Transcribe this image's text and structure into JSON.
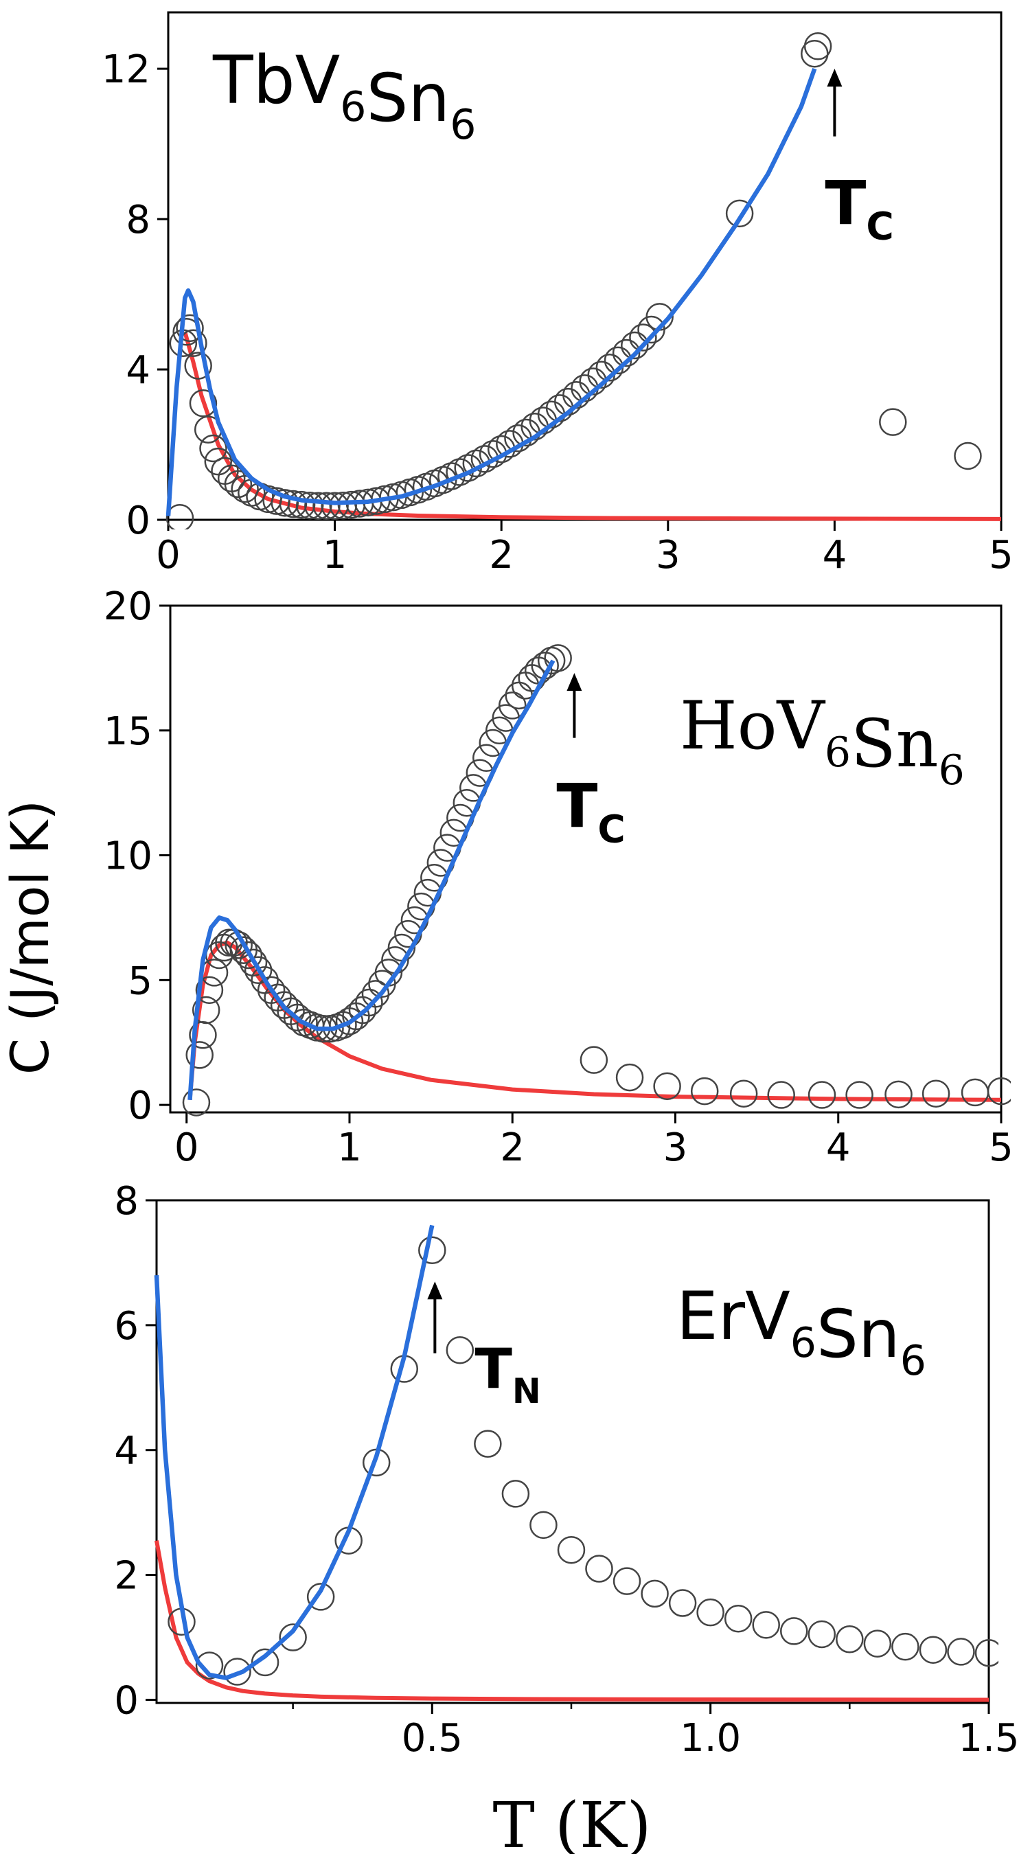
{
  "figure": {
    "ylabel": "C (J/mol K)",
    "xlabel": "T (K)"
  },
  "chart_data": [
    {
      "type": "scatter",
      "id": "tb",
      "title_base": "TbV",
      "title_sub1": "6",
      "title_mid": "Sn",
      "title_sub2": "6",
      "xlim": [
        0,
        5
      ],
      "ylim": [
        0,
        13.5
      ],
      "xticks": [
        0,
        1,
        2,
        3,
        4,
        5
      ],
      "xtick_labels": [
        "0",
        "1",
        "2",
        "3",
        "4",
        "5"
      ],
      "yticks": [
        0,
        4,
        8,
        12
      ],
      "ytick_labels": [
        "0",
        "4",
        "8",
        "12"
      ],
      "annotation": {
        "base": "T",
        "sub": "C",
        "x": 4.0,
        "y_tail": 10.2,
        "y_head": 12.0
      },
      "series": [
        {
          "name": "data",
          "kind": "markers",
          "x": [
            0.07,
            0.09,
            0.11,
            0.13,
            0.15,
            0.18,
            0.21,
            0.24,
            0.27,
            0.3,
            0.34,
            0.38,
            0.42,
            0.46,
            0.5,
            0.55,
            0.6,
            0.65,
            0.7,
            0.75,
            0.8,
            0.85,
            0.9,
            0.95,
            1.0,
            1.05,
            1.1,
            1.15,
            1.2,
            1.25,
            1.3,
            1.35,
            1.4,
            1.45,
            1.5,
            1.55,
            1.6,
            1.65,
            1.7,
            1.75,
            1.8,
            1.85,
            1.9,
            1.95,
            2.0,
            2.05,
            2.1,
            2.15,
            2.2,
            2.25,
            2.3,
            2.35,
            2.4,
            2.45,
            2.5,
            2.55,
            2.6,
            2.65,
            2.7,
            2.75,
            2.8,
            2.85,
            2.9,
            2.95,
            3.43,
            3.88,
            3.9,
            4.35,
            4.8
          ],
          "y": [
            0.05,
            4.7,
            5.0,
            5.1,
            4.7,
            4.1,
            3.1,
            2.4,
            1.9,
            1.55,
            1.3,
            1.1,
            0.95,
            0.82,
            0.72,
            0.62,
            0.55,
            0.5,
            0.45,
            0.42,
            0.4,
            0.38,
            0.37,
            0.37,
            0.37,
            0.38,
            0.4,
            0.43,
            0.46,
            0.5,
            0.55,
            0.6,
            0.66,
            0.73,
            0.8,
            0.88,
            0.97,
            1.06,
            1.16,
            1.27,
            1.38,
            1.5,
            1.62,
            1.75,
            1.88,
            2.02,
            2.17,
            2.32,
            2.48,
            2.64,
            2.8,
            2.97,
            3.14,
            3.32,
            3.5,
            3.68,
            3.86,
            4.05,
            4.24,
            4.44,
            4.64,
            4.85,
            5.06,
            5.4,
            8.15,
            12.4,
            12.6,
            2.6,
            1.7
          ]
        },
        {
          "name": "fit-total",
          "kind": "line",
          "color": "#2a6fdb",
          "x": [
            0.0,
            0.05,
            0.1,
            0.12,
            0.15,
            0.2,
            0.25,
            0.3,
            0.4,
            0.5,
            0.6,
            0.7,
            0.8,
            1.0,
            1.2,
            1.4,
            1.6,
            1.8,
            2.0,
            2.2,
            2.4,
            2.6,
            2.8,
            3.0,
            3.2,
            3.4,
            3.6,
            3.8,
            3.88
          ],
          "y": [
            0.1,
            3.5,
            5.9,
            6.1,
            5.8,
            4.6,
            3.5,
            2.6,
            1.6,
            1.1,
            0.8,
            0.62,
            0.52,
            0.45,
            0.48,
            0.62,
            0.9,
            1.25,
            1.7,
            2.2,
            2.85,
            3.6,
            4.4,
            5.35,
            6.5,
            7.8,
            9.2,
            11.0,
            12.0
          ]
        },
        {
          "name": "fit-schottky",
          "kind": "line",
          "color": "#ef3b3b",
          "x": [
            0.1,
            0.15,
            0.2,
            0.3,
            0.4,
            0.5,
            0.6,
            0.8,
            1.0,
            1.2,
            1.5,
            2.0,
            2.5,
            3.0,
            4.0,
            5.0
          ],
          "y": [
            5.0,
            4.2,
            3.3,
            2.0,
            1.2,
            0.8,
            0.55,
            0.32,
            0.22,
            0.16,
            0.11,
            0.07,
            0.05,
            0.04,
            0.03,
            0.02
          ]
        }
      ]
    },
    {
      "type": "scatter",
      "id": "ho",
      "title_base": "HoV",
      "title_sub1": "6",
      "title_mid": "Sn",
      "title_sub2": "6",
      "xlim": [
        -0.1,
        5
      ],
      "ylim": [
        -0.3,
        20
      ],
      "xticks": [
        0,
        1,
        2,
        3,
        4,
        5
      ],
      "xtick_labels": [
        "0",
        "1",
        "2",
        "3",
        "4",
        "5"
      ],
      "yticks": [
        0,
        5,
        10,
        15,
        20
      ],
      "ytick_labels": [
        "0",
        "5",
        "10",
        "15",
        "20"
      ],
      "annotation": {
        "base": "T",
        "sub": "C",
        "x": 2.38,
        "y_tail": 14.7,
        "y_head": 17.3
      },
      "series": [
        {
          "name": "data",
          "kind": "markers",
          "x": [
            0.06,
            0.08,
            0.1,
            0.12,
            0.14,
            0.17,
            0.2,
            0.23,
            0.26,
            0.29,
            0.32,
            0.35,
            0.38,
            0.41,
            0.44,
            0.48,
            0.52,
            0.56,
            0.6,
            0.64,
            0.68,
            0.72,
            0.76,
            0.8,
            0.84,
            0.88,
            0.92,
            0.96,
            1.0,
            1.04,
            1.08,
            1.12,
            1.16,
            1.2,
            1.24,
            1.28,
            1.32,
            1.36,
            1.4,
            1.44,
            1.48,
            1.52,
            1.56,
            1.6,
            1.64,
            1.68,
            1.72,
            1.76,
            1.8,
            1.84,
            1.88,
            1.92,
            1.96,
            2.0,
            2.04,
            2.08,
            2.12,
            2.16,
            2.2,
            2.24,
            2.28,
            2.5,
            2.72,
            2.95,
            3.18,
            3.42,
            3.65,
            3.9,
            4.13,
            4.37,
            4.6,
            4.84,
            5.0
          ],
          "y": [
            0.1,
            2.0,
            2.8,
            3.8,
            4.6,
            5.3,
            6.0,
            6.3,
            6.5,
            6.5,
            6.4,
            6.2,
            6.0,
            5.7,
            5.4,
            5.0,
            4.6,
            4.3,
            4.0,
            3.75,
            3.5,
            3.3,
            3.2,
            3.1,
            3.05,
            3.05,
            3.1,
            3.2,
            3.35,
            3.55,
            3.8,
            4.1,
            4.45,
            4.85,
            5.3,
            5.8,
            6.3,
            6.85,
            7.4,
            7.95,
            8.5,
            9.1,
            9.7,
            10.3,
            10.9,
            11.5,
            12.1,
            12.7,
            13.3,
            13.9,
            14.5,
            15.0,
            15.5,
            16.0,
            16.4,
            16.8,
            17.1,
            17.4,
            17.6,
            17.8,
            17.9,
            1.8,
            1.1,
            0.75,
            0.55,
            0.45,
            0.4,
            0.4,
            0.4,
            0.42,
            0.45,
            0.5,
            0.55
          ]
        },
        {
          "name": "fit-total",
          "kind": "line",
          "color": "#2a6fdb",
          "x": [
            0.02,
            0.05,
            0.1,
            0.15,
            0.2,
            0.25,
            0.3,
            0.4,
            0.5,
            0.6,
            0.7,
            0.8,
            0.9,
            1.0,
            1.1,
            1.2,
            1.3,
            1.4,
            1.5,
            1.6,
            1.7,
            1.8,
            1.9,
            2.0,
            2.1,
            2.2,
            2.25
          ],
          "y": [
            0.2,
            3.0,
            5.8,
            7.1,
            7.5,
            7.4,
            7.0,
            5.9,
            4.8,
            3.9,
            3.35,
            3.05,
            3.05,
            3.3,
            3.8,
            4.5,
            5.4,
            6.5,
            7.8,
            9.2,
            10.7,
            12.2,
            13.6,
            14.9,
            16.0,
            17.2,
            17.8
          ]
        },
        {
          "name": "fit-schottky",
          "kind": "line",
          "color": "#ef3b3b",
          "x": [
            0.02,
            0.05,
            0.1,
            0.15,
            0.2,
            0.25,
            0.3,
            0.4,
            0.5,
            0.6,
            0.7,
            0.8,
            1.0,
            1.2,
            1.5,
            2.0,
            2.5,
            3.0,
            4.0,
            5.0
          ],
          "y": [
            0.2,
            2.5,
            4.8,
            6.0,
            6.4,
            6.5,
            6.3,
            5.5,
            4.6,
            3.8,
            3.2,
            2.7,
            1.95,
            1.45,
            1.0,
            0.62,
            0.43,
            0.33,
            0.24,
            0.2
          ]
        }
      ]
    },
    {
      "type": "scatter",
      "id": "er",
      "title_base": "ErV",
      "title_sub1": "6",
      "title_mid": "Sn",
      "title_sub2": "6",
      "xlim": [
        0.005,
        1.5
      ],
      "ylim": [
        -0.05,
        8
      ],
      "xticks": [
        0.5,
        1.0,
        1.5
      ],
      "xtick_labels": [
        "0.5",
        "1.0",
        "1.5"
      ],
      "minor_xticks": [
        0.25,
        0.75,
        1.25
      ],
      "yticks": [
        0,
        2,
        4,
        6,
        8
      ],
      "ytick_labels": [
        "0",
        "2",
        "4",
        "6",
        "8"
      ],
      "annotation": {
        "base": "T",
        "sub": "N",
        "x": 0.505,
        "y_tail": 5.55,
        "y_head": 6.7
      },
      "series": [
        {
          "name": "data",
          "kind": "markers",
          "x": [
            0.05,
            0.1,
            0.15,
            0.2,
            0.25,
            0.3,
            0.35,
            0.4,
            0.45,
            0.5,
            0.55,
            0.6,
            0.65,
            0.7,
            0.75,
            0.8,
            0.85,
            0.9,
            0.95,
            1.0,
            1.05,
            1.1,
            1.15,
            1.2,
            1.25,
            1.3,
            1.35,
            1.4,
            1.45,
            1.5
          ],
          "y": [
            1.25,
            0.55,
            0.45,
            0.6,
            1.0,
            1.65,
            2.55,
            3.8,
            5.3,
            7.2,
            5.6,
            4.1,
            3.3,
            2.8,
            2.4,
            2.1,
            1.9,
            1.7,
            1.55,
            1.4,
            1.3,
            1.2,
            1.1,
            1.05,
            0.97,
            0.9,
            0.85,
            0.8,
            0.77,
            0.75
          ]
        },
        {
          "name": "fit-total",
          "kind": "line",
          "color": "#2a6fdb",
          "x": [
            0.005,
            0.02,
            0.04,
            0.06,
            0.08,
            0.1,
            0.13,
            0.16,
            0.2,
            0.25,
            0.3,
            0.35,
            0.4,
            0.45,
            0.5
          ],
          "y": [
            6.8,
            4.0,
            2.0,
            1.0,
            0.6,
            0.4,
            0.35,
            0.45,
            0.7,
            1.1,
            1.75,
            2.7,
            3.9,
            5.5,
            7.6
          ]
        },
        {
          "name": "fit-schottky",
          "kind": "line",
          "color": "#ef3b3b",
          "x": [
            0.005,
            0.02,
            0.04,
            0.06,
            0.08,
            0.1,
            0.13,
            0.16,
            0.2,
            0.25,
            0.3,
            0.4,
            0.5,
            0.7,
            1.0,
            1.5
          ],
          "y": [
            2.55,
            1.8,
            1.0,
            0.6,
            0.42,
            0.3,
            0.2,
            0.14,
            0.1,
            0.07,
            0.05,
            0.03,
            0.02,
            0.01,
            0.005,
            0.0
          ]
        }
      ]
    }
  ]
}
